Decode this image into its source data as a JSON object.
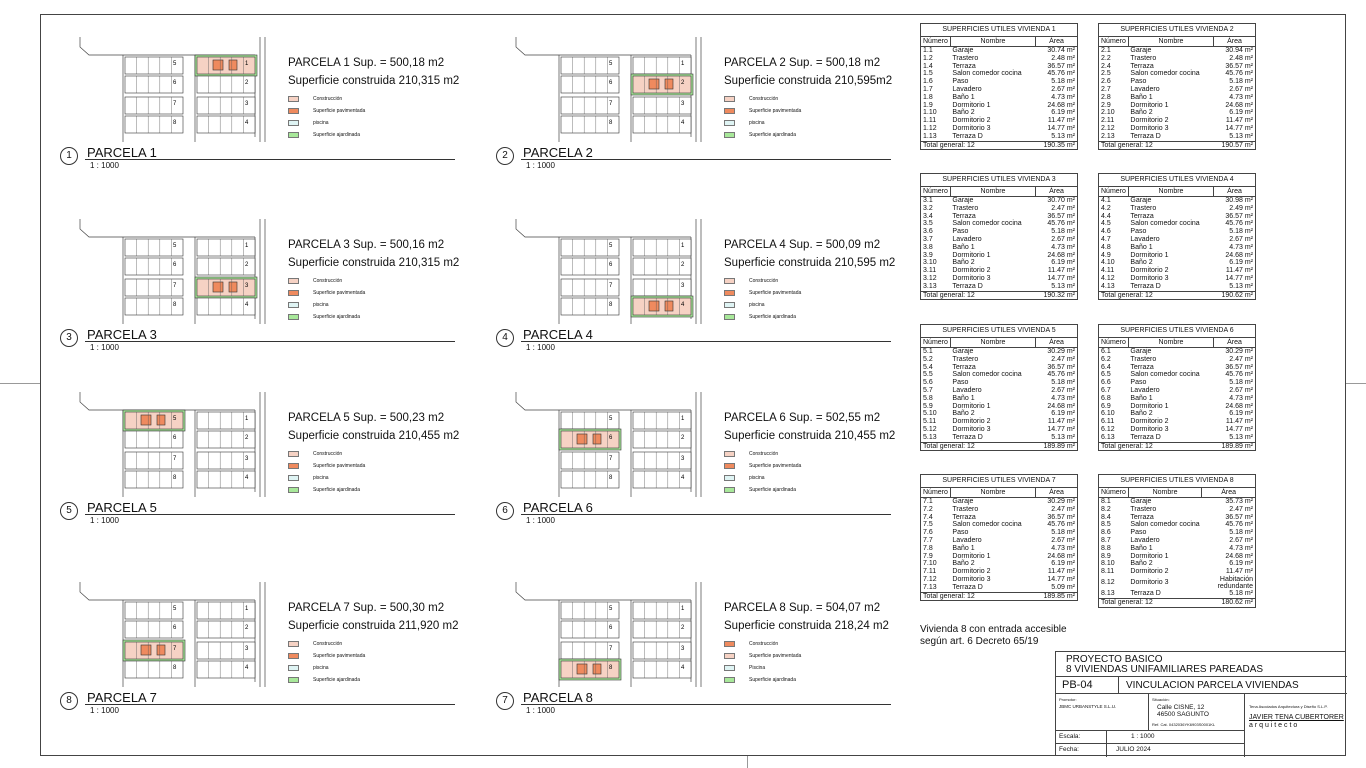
{
  "parcels": [
    {
      "num": "1",
      "name": "PARCELA 1",
      "title": "PARCELA 1 Sup. = 500,18 m2",
      "built": "Superficie construida 210,315 m2",
      "scale": "1 : 1000",
      "highlight": 1
    },
    {
      "num": "2",
      "name": "PARCELA 2",
      "title": "PARCELA 2 Sup. = 500,18 m2",
      "built": "Superficie construida 210,595m2",
      "scale": "1 : 1000",
      "highlight": 2
    },
    {
      "num": "3",
      "name": "PARCELA 3",
      "title": "PARCELA 3 Sup. = 500,16 m2",
      "built": "Superficie construida 210,315 m2",
      "scale": "1 : 1000",
      "highlight": 3
    },
    {
      "num": "4",
      "name": "PARCELA 4",
      "title": "PARCELA 4 Sup. = 500,09 m2",
      "built": "Superficie construida 210,595 m2",
      "scale": "1 : 1000",
      "highlight": 4
    },
    {
      "num": "5",
      "name": "PARCELA 5",
      "title": "PARCELA 5 Sup. = 500,23 m2",
      "built": "Superficie construida 210,455 m2",
      "scale": "1 : 1000",
      "highlight": 5
    },
    {
      "num": "6",
      "name": "PARCELA 6",
      "title": "PARCELA 6 Sup. = 502,55 m2",
      "built": "Superficie construida 210,455 m2",
      "scale": "1 : 1000",
      "highlight": 6
    },
    {
      "num": "8",
      "name": "PARCELA 7",
      "title": "PARCELA 7 Sup. = 500,30 m2",
      "built": "Superficie construida 211,920 m2",
      "scale": "1 : 1000",
      "highlight": 7
    },
    {
      "num": "7",
      "name": "PARCELA 8",
      "title": "PARCELA 8 Sup. = 504,07 m2",
      "built": "Superficie construida 218,24 m2",
      "scale": "1 : 1000",
      "highlight": 8
    }
  ],
  "legend": [
    {
      "label": "Construcción",
      "color": "#f6d2c4"
    },
    {
      "label": "Superficie pavimentada",
      "color": "#ef8a5e"
    },
    {
      "label": "piscina",
      "color": "#dff4f4"
    },
    {
      "label": "Superficie ajardinada",
      "color": "#a8e89a"
    }
  ],
  "legend8": [
    {
      "label": "Construcción",
      "color": "#ef8a5e"
    },
    {
      "label": "Superficie pavimentada",
      "color": "#f6d2c4"
    },
    {
      "label": "Piscina",
      "color": "#dff4f4"
    },
    {
      "label": "Superficie ajardinada",
      "color": "#a8e89a"
    }
  ],
  "tables": [
    {
      "title": "SUPERFICIES UTILES VIVIENDA  1",
      "rows": [
        [
          "1.1",
          "Garaje",
          "30.74 m²"
        ],
        [
          "1.2",
          "Trastero",
          "2.48 m²"
        ],
        [
          "1.4",
          "Terraza",
          "36.57 m²"
        ],
        [
          "1.5",
          "Salon comedor cocina",
          "45.76 m²"
        ],
        [
          "1.6",
          "Paso",
          "5.18 m²"
        ],
        [
          "1.7",
          "Lavadero",
          "2.67 m²"
        ],
        [
          "1.8",
          "Baño 1",
          "4.73 m²"
        ],
        [
          "1.9",
          "Dormitorio 1",
          "24.68 m²"
        ],
        [
          "1.10",
          "Baño 2",
          "6.19 m²"
        ],
        [
          "1.11",
          "Dormitorio 2",
          "11.47 m²"
        ],
        [
          "1.12",
          "Dormitorio 3",
          "14.77 m²"
        ],
        [
          "1.13",
          "Terraza D",
          "5.13 m²"
        ]
      ],
      "total": "190.35 m²"
    },
    {
      "title": "SUPERFICIES UTILES VIVIENDA  2",
      "rows": [
        [
          "2.1",
          "Garaje",
          "30.94 m²"
        ],
        [
          "2.2",
          "Trastero",
          "2.48 m²"
        ],
        [
          "2.4",
          "Terraza",
          "36.57 m²"
        ],
        [
          "2.5",
          "Salon comedor cocina",
          "45.76 m²"
        ],
        [
          "2.6",
          "Paso",
          "5.18 m²"
        ],
        [
          "2.7",
          "Lavadero",
          "2.67 m²"
        ],
        [
          "2.8",
          "Baño 1",
          "4.73 m²"
        ],
        [
          "2.9",
          "Dormitorio 1",
          "24.68 m²"
        ],
        [
          "2.10",
          "Baño 2",
          "6.19 m²"
        ],
        [
          "2.11",
          "Dormitorio 2",
          "11.47 m²"
        ],
        [
          "2.12",
          "Dormitorio 3",
          "14.77 m²"
        ],
        [
          "2.13",
          "Terraza D",
          "5.13 m²"
        ]
      ],
      "total": "190.57 m²"
    },
    {
      "title": "SUPERFICIES UTILES VIVIENDA  3",
      "rows": [
        [
          "3.1",
          "Garaje",
          "30.70 m²"
        ],
        [
          "3.2",
          "Trastero",
          "2.47 m²"
        ],
        [
          "3.4",
          "Terraza",
          "36.57 m²"
        ],
        [
          "3.5",
          "Salon comedor cocina",
          "45.76 m²"
        ],
        [
          "3.6",
          "Paso",
          "5.18 m²"
        ],
        [
          "3.7",
          "Lavadero",
          "2.67 m²"
        ],
        [
          "3.8",
          "Baño 1",
          "4.73 m²"
        ],
        [
          "3.9",
          "Dormitorio 1",
          "24.68 m²"
        ],
        [
          "3.10",
          "Baño 2",
          "6.19 m²"
        ],
        [
          "3.11",
          "Dormitorio 2",
          "11.47 m²"
        ],
        [
          "3.12",
          "Dormitorio 3",
          "14.77 m²"
        ],
        [
          "3.13",
          "Terraza D",
          "5.13 m²"
        ]
      ],
      "total": "190.32 m²"
    },
    {
      "title": "SUPERFICIES UTILES VIVIENDA  4",
      "rows": [
        [
          "4.1",
          "Garaje",
          "30.98 m²"
        ],
        [
          "4.2",
          "Trastero",
          "2.49 m²"
        ],
        [
          "4.4",
          "Terraza",
          "36.57 m²"
        ],
        [
          "4.5",
          "Salon comedor cocina",
          "45.76 m²"
        ],
        [
          "4.6",
          "Paso",
          "5.18 m²"
        ],
        [
          "4.7",
          "Lavadero",
          "2.67 m²"
        ],
        [
          "4.8",
          "Baño 1",
          "4.73 m²"
        ],
        [
          "4.9",
          "Dormitorio 1",
          "24.68 m²"
        ],
        [
          "4.10",
          "Baño 2",
          "6.19 m²"
        ],
        [
          "4.11",
          "Dormitorio 2",
          "11.47 m²"
        ],
        [
          "4.12",
          "Dormitorio 3",
          "14.77 m²"
        ],
        [
          "4.13",
          "Terraza D",
          "5.13 m²"
        ]
      ],
      "total": "190.62 m²"
    },
    {
      "title": "SUPERFICIES UTILES VIVIENDA  5",
      "rows": [
        [
          "5.1",
          "Garaje",
          "30.29 m²"
        ],
        [
          "5.2",
          "Trastero",
          "2.47 m²"
        ],
        [
          "5.4",
          "Terraza",
          "36.57 m²"
        ],
        [
          "5.5",
          "Salon comedor cocina",
          "45.76 m²"
        ],
        [
          "5.6",
          "Paso",
          "5.18 m²"
        ],
        [
          "5.7",
          "Lavadero",
          "2.67 m²"
        ],
        [
          "5.8",
          "Baño 1",
          "4.73 m²"
        ],
        [
          "5.9",
          "Dormitorio 1",
          "24.68 m²"
        ],
        [
          "5.10",
          "Baño 2",
          "6.19 m²"
        ],
        [
          "5.11",
          "Dormitorio 2",
          "11.47 m²"
        ],
        [
          "5.12",
          "Dormitorio 3",
          "14.77 m²"
        ],
        [
          "5.13",
          "Terraza D",
          "5.13 m²"
        ]
      ],
      "total": "189.89 m²"
    },
    {
      "title": "SUPERFICIES UTILES VIVIENDA  6",
      "rows": [
        [
          "6.1",
          "Garaje",
          "30.29 m²"
        ],
        [
          "6.2",
          "Trastero",
          "2.47 m²"
        ],
        [
          "6.4",
          "Terraza",
          "36.57 m²"
        ],
        [
          "6.5",
          "Salon comedor cocina",
          "45.76 m²"
        ],
        [
          "6.6",
          "Paso",
          "5.18 m²"
        ],
        [
          "6.7",
          "Lavadero",
          "2.67 m²"
        ],
        [
          "6.8",
          "Baño 1",
          "4.73 m²"
        ],
        [
          "6.9",
          "Dormitorio 1",
          "24.68 m²"
        ],
        [
          "6.10",
          "Baño 2",
          "6.19 m²"
        ],
        [
          "6.11",
          "Dormitorio 2",
          "11.47 m²"
        ],
        [
          "6.12",
          "Dormitorio 3",
          "14.77 m²"
        ],
        [
          "6.13",
          "Terraza D",
          "5.13 m²"
        ]
      ],
      "total": "189.89 m²"
    },
    {
      "title": "SUPERFICIES UTILES VIVIENDA  7",
      "rows": [
        [
          "7.1",
          "Garaje",
          "30.29 m²"
        ],
        [
          "7.2",
          "Trastero",
          "2.47 m²"
        ],
        [
          "7.4",
          "Terraza",
          "36.57 m²"
        ],
        [
          "7.5",
          "Salon comedor cocina",
          "45.76 m²"
        ],
        [
          "7.6",
          "Paso",
          "5.18 m²"
        ],
        [
          "7.7",
          "Lavadero",
          "2.67 m²"
        ],
        [
          "7.8",
          "Baño 1",
          "4.73 m²"
        ],
        [
          "7.9",
          "Dormitorio 1",
          "24.68 m²"
        ],
        [
          "7.10",
          "Baño 2",
          "6.19 m²"
        ],
        [
          "7.11",
          "Dormitorio 2",
          "11.47 m²"
        ],
        [
          "7.12",
          "Dormitorio 3",
          "14.77 m²"
        ],
        [
          "7.13",
          "Terraza D",
          "5.09 m²"
        ]
      ],
      "total": "189.85 m²"
    },
    {
      "title": "SUPERFICIES UTILES VIVIENDA  8",
      "rows": [
        [
          "8.1",
          "Garaje",
          "35.73 m²"
        ],
        [
          "8.2",
          "Trastero",
          "2.47 m²"
        ],
        [
          "8.4",
          "Terraza",
          "36.57 m²"
        ],
        [
          "8.5",
          "Salon comedor cocina",
          "45.76 m²"
        ],
        [
          "8.6",
          "Paso",
          "5.18 m²"
        ],
        [
          "8.7",
          "Lavadero",
          "2.67 m²"
        ],
        [
          "8.8",
          "Baño 1",
          "4.73 m²"
        ],
        [
          "8.9",
          "Dormitorio 1",
          "24.68 m²"
        ],
        [
          "8.10",
          "Baño 2",
          "6.19 m²"
        ],
        [
          "8.11",
          "Dormitorio 2",
          "11.47 m²"
        ],
        [
          "8.12",
          "Dormitorio 3",
          "Habitación redundante"
        ],
        [
          "8.13",
          "Terraza D",
          "5.18 m²"
        ]
      ],
      "total": "180.62 m²"
    }
  ],
  "table_headers": {
    "num": "Número",
    "name": "Nombre",
    "area": "Área",
    "total": "Total general: 12"
  },
  "note": {
    "line1": "Vivienda 8 con entrada accesible",
    "line2": "según art. 6 Decreto 65/19"
  },
  "titleblock": {
    "project1": "PROYECTO BASICO",
    "project2": "8 VIVIENDAS UNIFAMILIARES   PAREADAS",
    "code": "PB-04",
    "sheet_title": "VINCULACION PARCELA VIVIENDAS",
    "promotor_label": "Promotor:",
    "promotor": "JBMC URBANSTYLE S.L.U.",
    "situacion_label": "Situación:",
    "address1": "Calle  CISNE, 12",
    "address2": "46500   SAGUNTO",
    "ref": "Ref. Cat. 0432036YK6903S0001KL",
    "firm": "Tena Asociados Arquitectura y Diseño S.L.P.",
    "architect": "JAVIER TENA CUBERTORER",
    "role": "a r q u i t e c t o",
    "escala_label": "Escala:",
    "escala": "1 : 1000",
    "fecha_label": "Fecha:",
    "fecha": "JULIO 2024"
  }
}
